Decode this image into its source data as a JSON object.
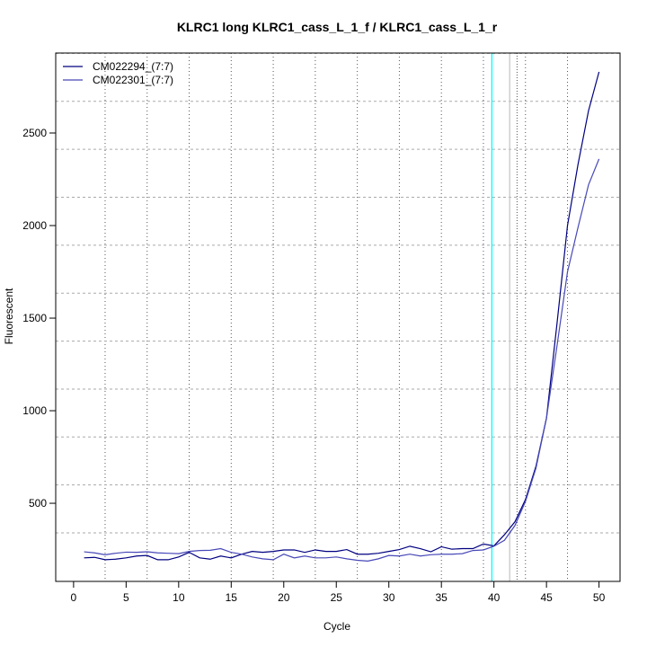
{
  "chart_data": {
    "type": "line",
    "title": "KLRC1 long KLRC1_cass_L_1_f / KLRC1_cass_L_1_r",
    "xlabel": "Cycle",
    "ylabel": "Fluorescent",
    "xlim": [
      -1.7,
      52
    ],
    "ylim": [
      78,
      2932
    ],
    "xticks": [
      0,
      5,
      10,
      15,
      20,
      25,
      30,
      35,
      40,
      45,
      50
    ],
    "yticks": [
      500,
      1000,
      1500,
      2000,
      2500
    ],
    "grid": true,
    "legend_position": "top-left",
    "threshold_lines": [
      {
        "x": 39.8,
        "color": "#00ffff"
      },
      {
        "x": 41.5,
        "color": "#c8c8c8"
      }
    ],
    "x": [
      1,
      2,
      3,
      4,
      5,
      6,
      7,
      8,
      9,
      10,
      11,
      12,
      13,
      14,
      15,
      16,
      17,
      18,
      19,
      20,
      21,
      22,
      23,
      24,
      25,
      26,
      27,
      28,
      29,
      30,
      31,
      32,
      33,
      34,
      35,
      36,
      37,
      38,
      39,
      40,
      41,
      42,
      43,
      44,
      45,
      46,
      47,
      48,
      49,
      50
    ],
    "series": [
      {
        "name": "CM022294_(7:7)",
        "color": "#000080",
        "values": [
          205,
          208,
          195,
          198,
          205,
          215,
          218,
          195,
          195,
          210,
          235,
          205,
          198,
          215,
          205,
          225,
          240,
          235,
          240,
          248,
          248,
          235,
          248,
          240,
          240,
          250,
          225,
          225,
          230,
          240,
          250,
          268,
          255,
          238,
          265,
          252,
          255,
          255,
          280,
          270,
          330,
          400,
          520,
          700,
          960,
          1470,
          2000,
          2330,
          2620,
          2830
        ]
      },
      {
        "name": "CM022301_(7:7)",
        "color": "#4848b8",
        "values": [
          238,
          232,
          222,
          230,
          236,
          235,
          238,
          232,
          230,
          228,
          240,
          245,
          246,
          255,
          235,
          225,
          210,
          200,
          195,
          225,
          205,
          215,
          205,
          205,
          210,
          200,
          192,
          188,
          200,
          218,
          215,
          225,
          215,
          222,
          225,
          225,
          228,
          245,
          248,
          268,
          300,
          380,
          510,
          690,
          960,
          1350,
          1750,
          1990,
          2220,
          2360
        ]
      }
    ]
  }
}
